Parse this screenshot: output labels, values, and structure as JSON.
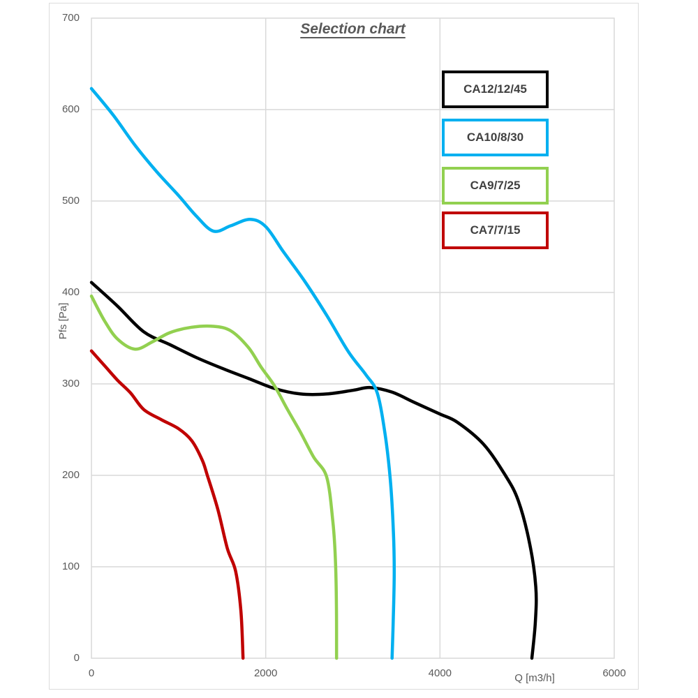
{
  "chart_data": {
    "type": "line",
    "title": "Selection chart",
    "xlabel": "Q [m3/h]",
    "ylabel": "Pfs [Pa]",
    "xlim": [
      0,
      6000
    ],
    "ylim": [
      0,
      700
    ],
    "x_ticks": [
      0,
      2000,
      4000,
      6000
    ],
    "y_ticks": [
      0,
      100,
      200,
      300,
      400,
      500,
      600,
      700
    ],
    "grid": true,
    "legend_position": "top-right",
    "colors": {
      "gridline": "#d9d9d9",
      "axis_text": "#595959",
      "legend_text": "#404040",
      "title_text": "#595959"
    },
    "series": [
      {
        "name": "CA12/12/45",
        "color": "#000000",
        "points": [
          [
            0,
            411
          ],
          [
            300,
            385
          ],
          [
            600,
            357
          ],
          [
            900,
            343
          ],
          [
            1200,
            329
          ],
          [
            1500,
            317
          ],
          [
            1800,
            306
          ],
          [
            2100,
            295
          ],
          [
            2400,
            289
          ],
          [
            2700,
            289
          ],
          [
            3000,
            293
          ],
          [
            3200,
            296
          ],
          [
            3450,
            291
          ],
          [
            3700,
            280
          ],
          [
            4000,
            267
          ],
          [
            4200,
            258
          ],
          [
            4500,
            234
          ],
          [
            4750,
            200
          ],
          [
            4900,
            172
          ],
          [
            5030,
            125
          ],
          [
            5100,
            78
          ],
          [
            5095,
            40
          ],
          [
            5055,
            0
          ]
        ]
      },
      {
        "name": "CA10/8/30",
        "color": "#00b0f0",
        "points": [
          [
            0,
            623
          ],
          [
            250,
            594
          ],
          [
            500,
            561
          ],
          [
            750,
            532
          ],
          [
            1000,
            506
          ],
          [
            1200,
            484
          ],
          [
            1400,
            467
          ],
          [
            1600,
            473
          ],
          [
            1820,
            480
          ],
          [
            2000,
            472
          ],
          [
            2200,
            445
          ],
          [
            2450,
            412
          ],
          [
            2700,
            375
          ],
          [
            2950,
            335
          ],
          [
            3150,
            310
          ],
          [
            3280,
            290
          ],
          [
            3370,
            245
          ],
          [
            3430,
            195
          ],
          [
            3465,
            140
          ],
          [
            3475,
            95
          ],
          [
            3465,
            45
          ],
          [
            3450,
            0
          ]
        ]
      },
      {
        "name": "CA9/7/25",
        "color": "#92d050",
        "points": [
          [
            0,
            396
          ],
          [
            150,
            369
          ],
          [
            300,
            349
          ],
          [
            500,
            338
          ],
          [
            700,
            346
          ],
          [
            900,
            356
          ],
          [
            1150,
            362
          ],
          [
            1400,
            363
          ],
          [
            1600,
            358
          ],
          [
            1800,
            340
          ],
          [
            1950,
            318
          ],
          [
            2100,
            298
          ],
          [
            2250,
            272
          ],
          [
            2400,
            247
          ],
          [
            2550,
            220
          ],
          [
            2700,
            198
          ],
          [
            2770,
            150
          ],
          [
            2800,
            108
          ],
          [
            2812,
            55
          ],
          [
            2813,
            0
          ]
        ]
      },
      {
        "name": "CA7/7/15",
        "color": "#c00000",
        "points": [
          [
            0,
            336
          ],
          [
            150,
            320
          ],
          [
            300,
            304
          ],
          [
            450,
            290
          ],
          [
            600,
            272
          ],
          [
            800,
            261
          ],
          [
            1000,
            251
          ],
          [
            1150,
            238
          ],
          [
            1270,
            217
          ],
          [
            1330,
            200
          ],
          [
            1450,
            163
          ],
          [
            1560,
            120
          ],
          [
            1655,
            95
          ],
          [
            1715,
            52
          ],
          [
            1740,
            0
          ]
        ]
      }
    ]
  }
}
